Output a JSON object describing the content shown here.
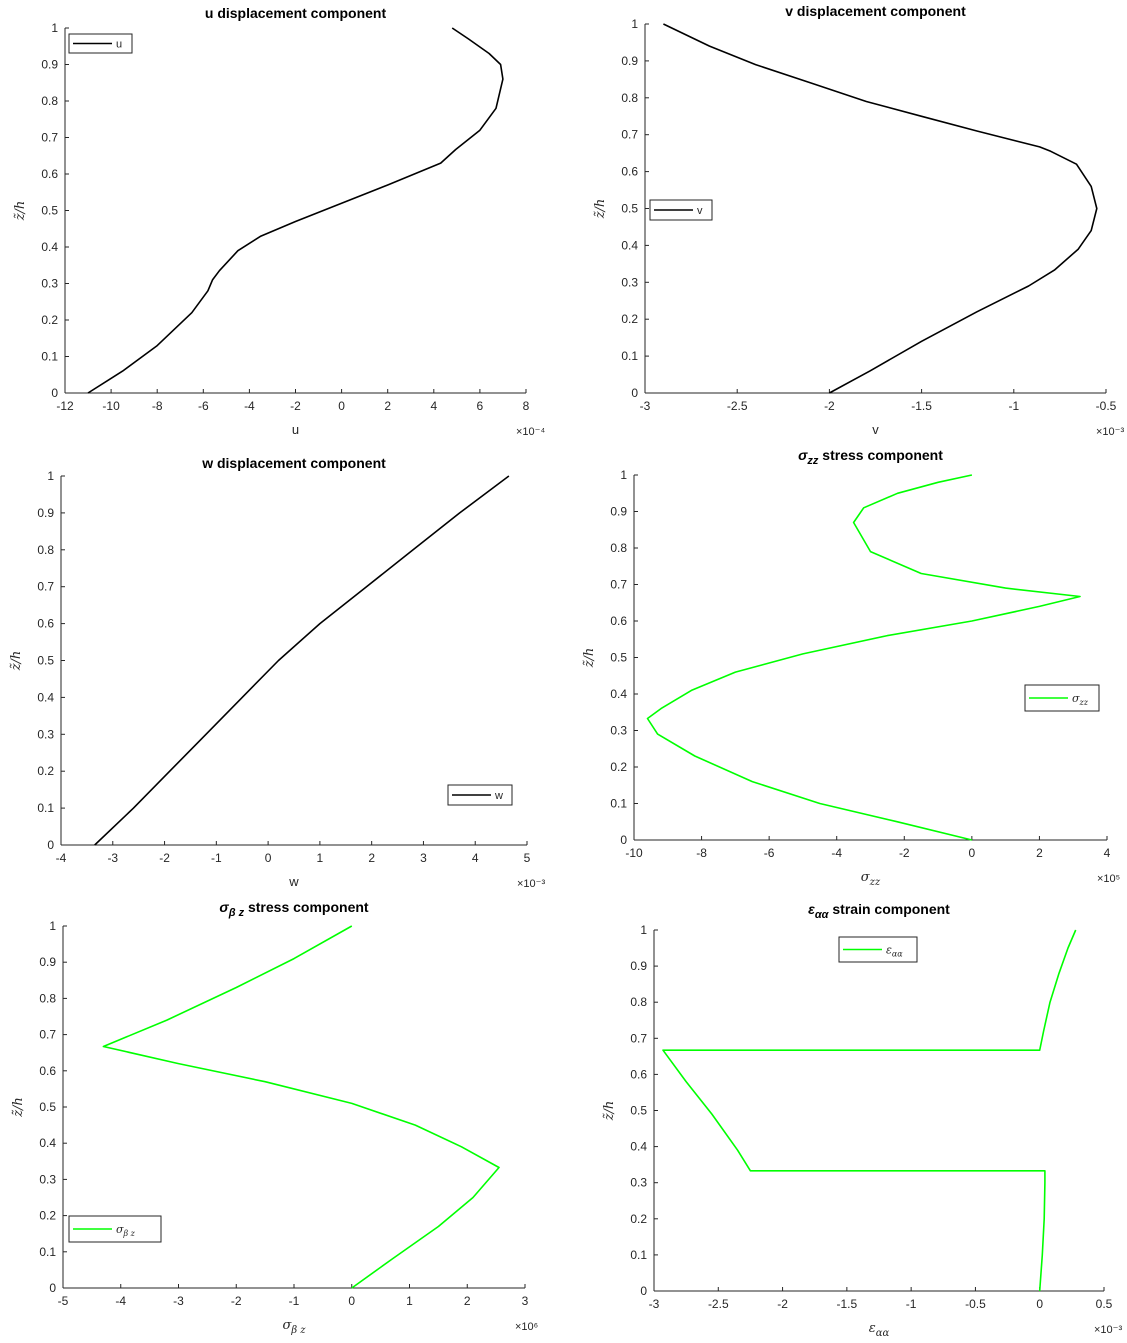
{
  "figure": {
    "background": "#ffffff",
    "axis_color": "#262626",
    "legend_border": "#262626"
  },
  "chart_data": [
    {
      "type": "line",
      "title": "u displacement component",
      "xlabel": "u",
      "ylabel": "z̃/h",
      "x_exponent": "×10⁻⁴",
      "xlim": [
        -12,
        8
      ],
      "ylim": [
        0,
        1
      ],
      "xticks": [
        -12,
        -10,
        -8,
        -6,
        -4,
        -2,
        0,
        2,
        4,
        6,
        8
      ],
      "yticks": [
        0,
        0.1,
        0.2,
        0.3,
        0.4,
        0.5,
        0.6,
        0.7,
        0.8,
        0.9,
        1
      ],
      "legend": "top-left",
      "series": [
        {
          "name": "u",
          "color": "#000000",
          "x": [
            -11,
            -9.5,
            -8,
            -6.5,
            -5.8,
            -5.6,
            -5.3,
            -4.5,
            -3.5,
            -2,
            0,
            2,
            4.3,
            4.95,
            6,
            6.7,
            7,
            6.9,
            6.4,
            5.5,
            4.8
          ],
          "y": [
            0,
            0.06,
            0.13,
            0.22,
            0.28,
            0.31,
            0.335,
            0.39,
            0.43,
            0.47,
            0.52,
            0.57,
            0.63,
            0.667,
            0.72,
            0.78,
            0.86,
            0.9,
            0.93,
            0.97,
            1
          ]
        }
      ]
    },
    {
      "type": "line",
      "title": "v displacement component",
      "xlabel": "v",
      "ylabel": "z̃/h",
      "x_exponent": "×10⁻³",
      "xlim": [
        -3,
        -0.5
      ],
      "ylim": [
        0,
        1
      ],
      "xticks": [
        -3,
        -2.5,
        -2,
        -1.5,
        -1,
        -0.5
      ],
      "yticks": [
        0,
        0.1,
        0.2,
        0.3,
        0.4,
        0.5,
        0.6,
        0.7,
        0.8,
        0.9,
        1
      ],
      "legend": "left",
      "series": [
        {
          "name": "v",
          "color": "#000000",
          "x": [
            -2,
            -1.78,
            -1.5,
            -1.2,
            -0.92,
            -0.78,
            -0.65,
            -0.58,
            -0.55,
            -0.58,
            -0.66,
            -0.8,
            -0.86,
            -1.2,
            -1.5,
            -1.8,
            -2.1,
            -2.4,
            -2.65,
            -2.9
          ],
          "y": [
            0,
            0.06,
            0.14,
            0.22,
            0.29,
            0.333,
            0.39,
            0.44,
            0.5,
            0.56,
            0.62,
            0.655,
            0.667,
            0.71,
            0.75,
            0.79,
            0.84,
            0.89,
            0.94,
            1
          ]
        }
      ]
    },
    {
      "type": "line",
      "title": "w displacement component",
      "xlabel": "w",
      "ylabel": "z̃/h",
      "x_exponent": "×10⁻³",
      "xlim": [
        -4,
        5
      ],
      "ylim": [
        0,
        1
      ],
      "xticks": [
        -4,
        -3,
        -2,
        -1,
        0,
        1,
        2,
        3,
        4,
        5
      ],
      "yticks": [
        0,
        0.1,
        0.2,
        0.3,
        0.4,
        0.5,
        0.6,
        0.7,
        0.8,
        0.9,
        1
      ],
      "legend": "bottom-right",
      "series": [
        {
          "name": "w",
          "color": "#000000",
          "x": [
            -3.35,
            -2.6,
            -1.9,
            -1.2,
            -0.5,
            0.2,
            1,
            1.9,
            2.8,
            3.7,
            4.65
          ],
          "y": [
            0,
            0.1,
            0.2,
            0.3,
            0.4,
            0.5,
            0.6,
            0.7,
            0.8,
            0.9,
            1
          ]
        }
      ]
    },
    {
      "type": "line",
      "title": "σzz stress component",
      "title_main": "σ",
      "title_sub": "zz",
      "title_rest": " stress component",
      "xlabel": "σ",
      "xlabel_sub": "zz",
      "ylabel": "z̃/h",
      "x_exponent": "×10⁵",
      "xlim": [
        -10,
        4
      ],
      "ylim": [
        0,
        1
      ],
      "xticks": [
        -10,
        -8,
        -6,
        -4,
        -2,
        0,
        2,
        4
      ],
      "yticks": [
        0,
        0.1,
        0.2,
        0.3,
        0.4,
        0.5,
        0.6,
        0.7,
        0.8,
        0.9,
        1
      ],
      "legend": "right",
      "series": [
        {
          "name": "σzz",
          "color": "#00ff00",
          "x": [
            0,
            -2.2,
            -4.5,
            -6.5,
            -8.2,
            -9.3,
            -9.6,
            -9.2,
            -8.3,
            -7,
            -5,
            -2.5,
            0,
            2,
            3.2,
            1,
            -1.5,
            -3,
            -3.5,
            -3.2,
            -2.2,
            -1,
            0
          ],
          "y": [
            0,
            0.05,
            0.1,
            0.16,
            0.23,
            0.29,
            0.333,
            0.36,
            0.41,
            0.46,
            0.51,
            0.56,
            0.6,
            0.64,
            0.667,
            0.69,
            0.73,
            0.79,
            0.87,
            0.91,
            0.95,
            0.98,
            1
          ]
        }
      ]
    },
    {
      "type": "line",
      "title": "σβz stress component",
      "title_main": "σ",
      "title_sub": "β z",
      "title_rest": " stress component",
      "xlabel": "σ",
      "xlabel_sub": "β z",
      "ylabel": "z̃/h",
      "x_exponent": "×10⁶",
      "xlim": [
        -5,
        3
      ],
      "ylim": [
        0,
        1
      ],
      "xticks": [
        -5,
        -4,
        -3,
        -2,
        -1,
        0,
        1,
        2,
        3
      ],
      "yticks": [
        0,
        0.1,
        0.2,
        0.3,
        0.4,
        0.5,
        0.6,
        0.7,
        0.8,
        0.9,
        1
      ],
      "legend": "bottom-left",
      "series": [
        {
          "name": "σβz",
          "color": "#00ff00",
          "x": [
            0,
            0.7,
            1.5,
            2.1,
            2.55,
            1.9,
            1.1,
            0,
            -1.5,
            -3,
            -4.3,
            -3.2,
            -2,
            -1,
            0
          ],
          "y": [
            0,
            0.08,
            0.17,
            0.25,
            0.333,
            0.39,
            0.45,
            0.51,
            0.57,
            0.62,
            0.667,
            0.74,
            0.83,
            0.91,
            1
          ]
        }
      ]
    },
    {
      "type": "line",
      "title": "εαα strain component",
      "title_main": "ε",
      "title_sub": "αα",
      "title_rest": " strain component",
      "xlabel": "ε",
      "xlabel_sub": "αα",
      "ylabel": "z̃/h",
      "x_exponent": "×10⁻³",
      "xlim": [
        -3,
        0.5
      ],
      "ylim": [
        0,
        1
      ],
      "xticks": [
        -3,
        -2.5,
        -2,
        -1.5,
        -1,
        -0.5,
        0,
        0.5
      ],
      "yticks": [
        0,
        0.1,
        0.2,
        0.3,
        0.4,
        0.5,
        0.6,
        0.7,
        0.8,
        0.9,
        1
      ],
      "legend": "top-left",
      "series": [
        {
          "name": "εαα",
          "color": "#00ff00",
          "x": [
            0,
            0.02,
            0.035,
            0.04,
            0.04,
            -2.25,
            -2.35,
            -2.55,
            -2.75,
            -2.93,
            0,
            0.03,
            0.08,
            0.15,
            0.22,
            0.28
          ],
          "y": [
            0,
            0.1,
            0.2,
            0.3,
            0.333,
            0.333,
            0.39,
            0.49,
            0.58,
            0.667,
            0.667,
            0.72,
            0.8,
            0.88,
            0.95,
            1
          ]
        }
      ]
    }
  ]
}
